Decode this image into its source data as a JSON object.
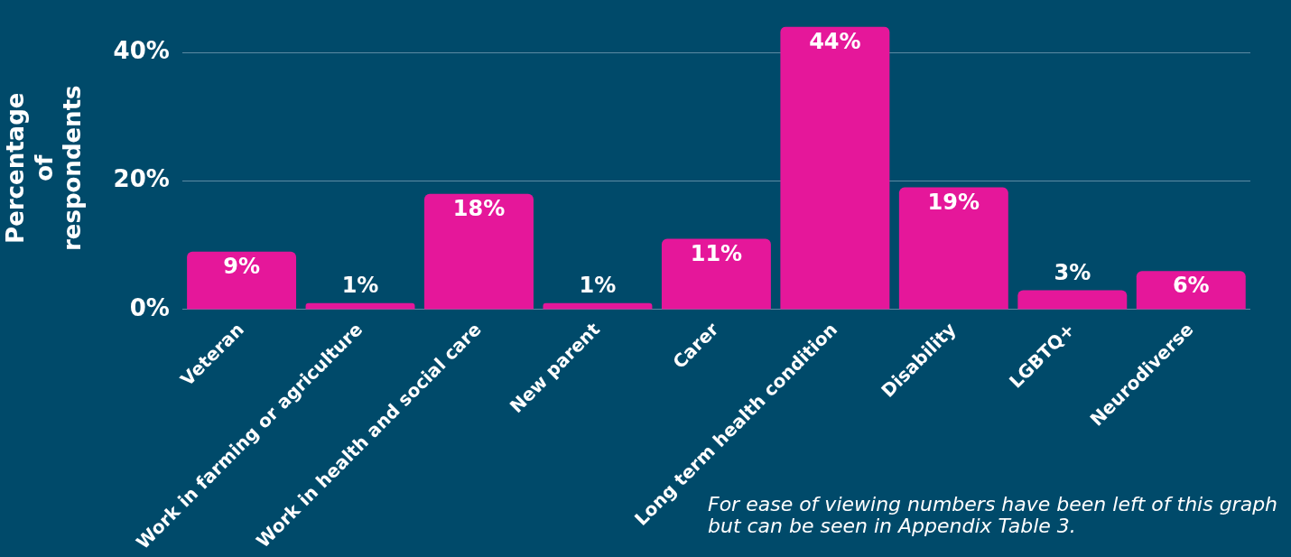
{
  "chart_data": {
    "type": "bar",
    "ylabel": "Percentage of respondents",
    "categories": [
      "Veteran",
      "Work in farming or agriculture",
      "Work in health and social care",
      "New parent",
      "Carer",
      "Long term health condition",
      "Disability",
      "LGBTQ+",
      "Neurodiverse"
    ],
    "values": [
      9,
      1,
      18,
      1,
      11,
      44,
      19,
      3,
      6
    ],
    "value_labels": [
      "9%",
      "1%",
      "18%",
      "1%",
      "11%",
      "44%",
      "19%",
      "3%",
      "6%"
    ],
    "color": "#e5179a",
    "ylim": [
      0,
      44
    ],
    "yticks": [
      {
        "value": 0,
        "label": "0%"
      },
      {
        "value": 20,
        "label": "20%"
      },
      {
        "value": 40,
        "label": "40%"
      }
    ],
    "grid": "y",
    "annotations": [
      "For ease of viewing numbers have been left of this graph but can be seen in Appendix Table 3."
    ]
  }
}
